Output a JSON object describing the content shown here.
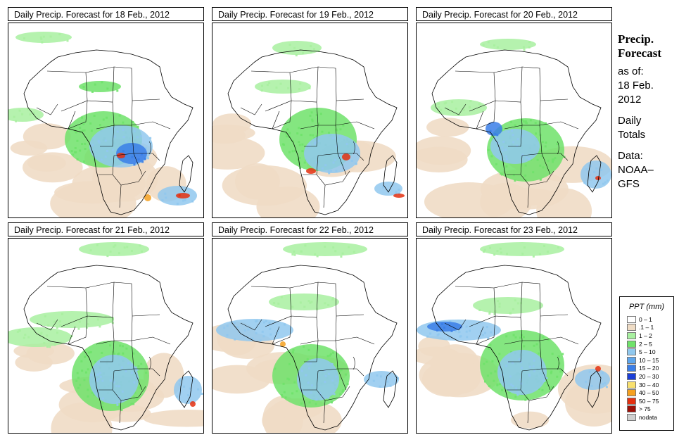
{
  "panels": [
    {
      "title": "Daily Precip. Forecast for  18 Feb., 2012"
    },
    {
      "title": "Daily Precip. Forecast for  19 Feb., 2012"
    },
    {
      "title": "Daily Precip. Forecast for  20 Feb., 2012"
    },
    {
      "title": "Daily Precip. Forecast for  21 Feb., 2012"
    },
    {
      "title": "Daily Precip. Forecast for  22 Feb., 2012"
    },
    {
      "title": "Daily Precip. Forecast for  23 Feb., 2012"
    }
  ],
  "sidebar": {
    "line1": "Precip.",
    "line2": "Forecast",
    "line3": "as of:",
    "line4": "18 Feb.",
    "line5": "2012",
    "line6": "Daily",
    "line7": "Totals",
    "line8": "Data:",
    "line9": "NOAA–",
    "line10": "GFS"
  },
  "legend": {
    "title": "PPT (mm)",
    "items": [
      {
        "label": "0 – 1",
        "color": "#ffffff"
      },
      {
        "label": ".1 – 1",
        "color": "#efdcc5"
      },
      {
        "label": "1 – 2",
        "color": "#a8f0a0"
      },
      {
        "label": "2 – 5",
        "color": "#6fe26a"
      },
      {
        "label": "5 – 10",
        "color": "#90c8ee"
      },
      {
        "label": "10 – 15",
        "color": "#5ea6ec"
      },
      {
        "label": "15 – 20",
        "color": "#3a7ee8"
      },
      {
        "label": "20 – 30",
        "color": "#1c3fd8"
      },
      {
        "label": "30 – 40",
        "color": "#f8e070"
      },
      {
        "label": "40 – 50",
        "color": "#f5a020"
      },
      {
        "label": "50 – 75",
        "color": "#e43010"
      },
      {
        "label": "> 75",
        "color": "#9c1008"
      },
      {
        "label": "nodata",
        "color": "#cfcfcf"
      }
    ]
  },
  "colors": {
    "land_dry": "#efdcc5",
    "light_green": "#a8f0a0",
    "green": "#6fe26a",
    "light_blue": "#90c8ee",
    "blue": "#3a7ee8",
    "dark_blue": "#1c3fd8",
    "orange": "#f5a020",
    "red": "#e43010"
  }
}
